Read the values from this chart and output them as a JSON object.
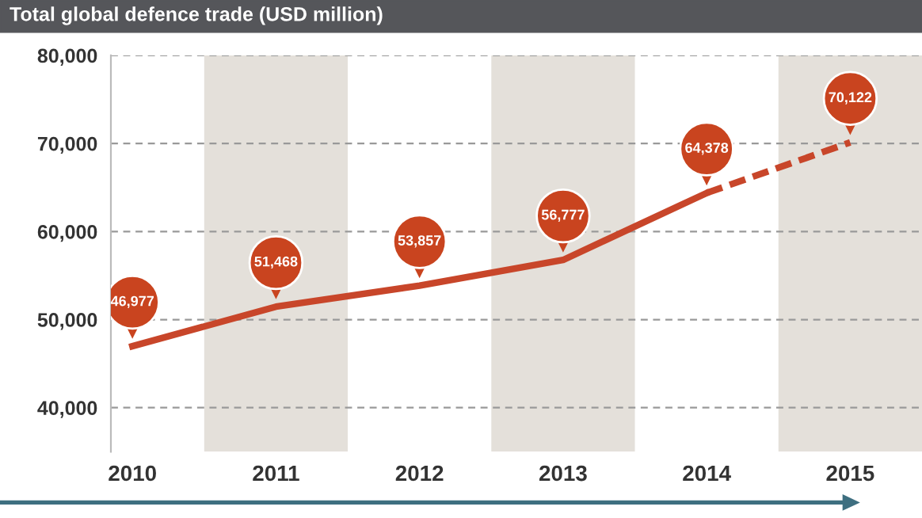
{
  "chart_data": {
    "type": "line",
    "title": "Total global defence trade (USD million)",
    "categories": [
      "2010",
      "2011",
      "2012",
      "2013",
      "2014",
      "2015"
    ],
    "series": [
      {
        "color": "#c8462a",
        "line_style": "solid",
        "values": [
          46977,
          51468,
          53857,
          56777,
          64378,
          null
        ],
        "value_labels": [
          "46,977",
          "51,468",
          "53,857",
          "56,777",
          "64,378",
          null
        ]
      },
      {
        "color": "#c8462a",
        "line_style": "dashed",
        "values": [
          null,
          null,
          null,
          null,
          64378,
          70122
        ],
        "value_labels": [
          null,
          null,
          null,
          null,
          null,
          "70,122"
        ]
      }
    ],
    "ylim": [
      35000,
      80000
    ],
    "yticks": [
      {
        "value": 40000,
        "label": "40,000"
      },
      {
        "value": 50000,
        "label": "50,000"
      },
      {
        "value": 60000,
        "label": "60,000"
      },
      {
        "value": 70000,
        "label": "70,000"
      },
      {
        "value": 80000,
        "label": "80,000"
      }
    ],
    "grid": "y",
    "marker": "none",
    "bands": [
      {
        "axis": "x",
        "from": "2011",
        "to": "2011",
        "color": "#e4e0da"
      },
      {
        "axis": "x",
        "from": "2013",
        "to": "2013",
        "color": "#e4e0da"
      },
      {
        "axis": "x",
        "from": "2015",
        "to": "2015",
        "color": "#e4e0da"
      }
    ]
  }
}
